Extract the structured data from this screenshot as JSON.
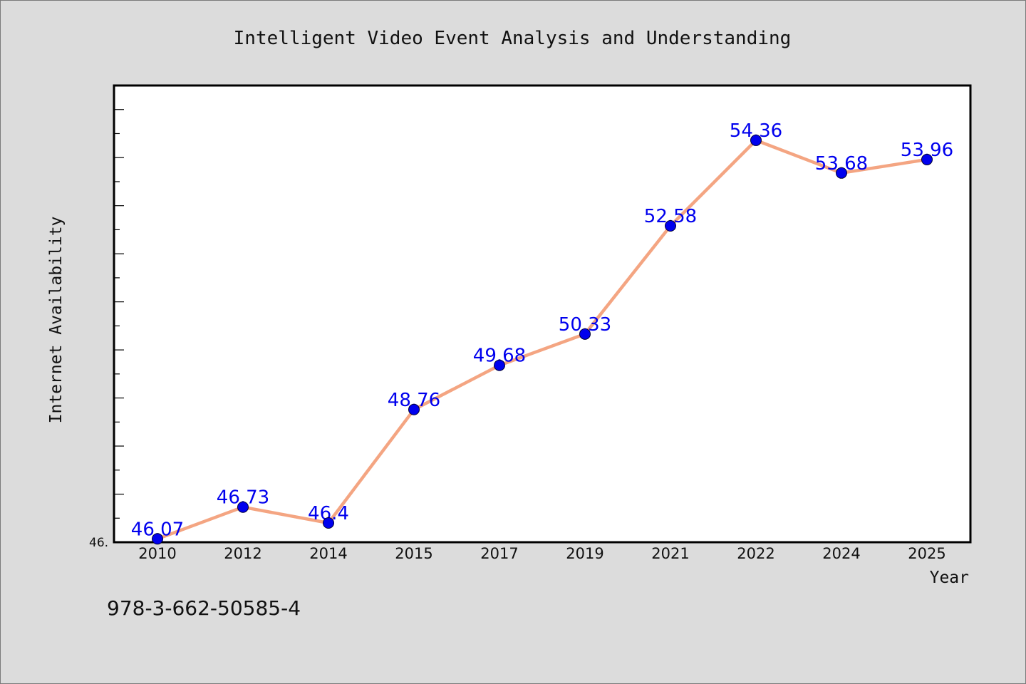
{
  "chart_data": {
    "type": "line",
    "title": "Intelligent Video Event Analysis and Understanding",
    "xlabel": "Year",
    "ylabel": "Internet Availability",
    "categories": [
      "2010",
      "2012",
      "2014",
      "2015",
      "2017",
      "2019",
      "2021",
      "2022",
      "2024",
      "2025"
    ],
    "series": [
      {
        "name": "",
        "values": [
          46.07,
          46.73,
          46.4,
          48.76,
          49.68,
          50.33,
          52.58,
          54.36,
          53.68,
          53.96
        ]
      }
    ],
    "data_labels": [
      "46.07",
      "46.73",
      "46.4",
      "48.76",
      "49.68",
      "50.33",
      "52.58",
      "54.36",
      "53.68",
      "53.96"
    ],
    "ylim": [
      46.0,
      55.5
    ],
    "y_tick_label": "46.",
    "grid": false,
    "line_color": "#f4a582",
    "marker_color": "#0000ee",
    "label_color": "#0000ee"
  },
  "footer": {
    "isbn": "978-3-662-50585-4"
  }
}
